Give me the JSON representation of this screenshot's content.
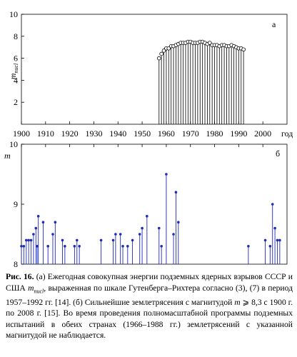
{
  "chart_data": [
    {
      "type": "scatter",
      "panel_label": "а",
      "ylabel": "m_nucl",
      "ylabel_main": "m",
      "ylabel_sub": "nucl",
      "xlim": [
        1900,
        2010
      ],
      "ylim": [
        0,
        10
      ],
      "yticks": [
        2,
        4,
        6,
        8,
        10
      ],
      "xticks": [
        1900,
        1910,
        1920,
        1930,
        1940,
        1950,
        1960,
        1970,
        1980,
        1990,
        2000
      ],
      "xtick_suffix_label": "год",
      "marker": "open-circle-stem",
      "color": "#000000",
      "x": [
        1957,
        1958,
        1959,
        1960,
        1961,
        1962,
        1963,
        1964,
        1965,
        1966,
        1967,
        1968,
        1969,
        1970,
        1971,
        1972,
        1973,
        1974,
        1975,
        1976,
        1977,
        1978,
        1979,
        1980,
        1981,
        1982,
        1983,
        1984,
        1985,
        1986,
        1987,
        1988,
        1989,
        1990,
        1991,
        1992
      ],
      "y": [
        6.0,
        6.4,
        6.7,
        6.9,
        6.9,
        7.1,
        7.1,
        7.2,
        7.3,
        7.4,
        7.4,
        7.4,
        7.5,
        7.5,
        7.4,
        7.4,
        7.4,
        7.5,
        7.5,
        7.4,
        7.3,
        7.4,
        7.2,
        7.2,
        7.2,
        7.1,
        7.2,
        7.2,
        7.1,
        7.1,
        7.2,
        7.1,
        7.0,
        6.9,
        6.9,
        6.8
      ]
    },
    {
      "type": "scatter",
      "panel_label": "б",
      "ylabel": "m",
      "xlim": [
        1900,
        2010
      ],
      "ylim": [
        8,
        10
      ],
      "yticks": [
        8,
        9,
        10
      ],
      "xticks": [
        1900,
        1910,
        1920,
        1930,
        1940,
        1950,
        1960,
        1970,
        1980,
        1990,
        2000
      ],
      "marker": "filled-dot-stem",
      "color": "#1f2bb8",
      "x": [
        1900,
        1901,
        1902,
        1903,
        1904,
        1905,
        1906,
        1906.5,
        1907,
        1909,
        1911,
        1913,
        1914,
        1917,
        1918,
        1922,
        1923,
        1924,
        1933,
        1938,
        1939,
        1941,
        1942,
        1944,
        1946,
        1949,
        1950,
        1952,
        1957,
        1958,
        1960,
        1963,
        1964,
        1965,
        1994,
        2001,
        2003,
        2004,
        2005,
        2006,
        2007
      ],
      "y": [
        8.3,
        8.3,
        8.4,
        8.4,
        8.4,
        8.5,
        8.6,
        8.3,
        8.8,
        8.7,
        8.3,
        8.5,
        8.7,
        8.4,
        8.3,
        8.3,
        8.4,
        8.3,
        8.4,
        8.4,
        8.5,
        8.5,
        8.3,
        8.3,
        8.4,
        8.5,
        8.6,
        8.8,
        8.6,
        8.3,
        9.5,
        8.5,
        9.2,
        8.7,
        8.3,
        8.4,
        8.3,
        9.0,
        8.6,
        8.4,
        8.4
      ]
    }
  ],
  "caption": {
    "label": "Рис. 16.",
    "text_1": " (а) Ежегодная совокупная энергии подземных ядерных взрывов СССР и США ",
    "m_main": "m",
    "m_sub": "nucl",
    "text_2": ", выраженная по шкале Гутенберга–Рихтера согласно (3), (7) в период 1957–1992 гг. [14]. (б) Сильнейшие землетрясения с магнитудой ",
    "m2": "m",
    "text_3": " ⩾ 8,3 с 1900 г. по 2008 г. [15]. Во время проведения полномасштабной программы подземных испытаний в обеих странах (1966–1988 гг.) землетрясений с указанной магнитудой не наблюдается."
  }
}
